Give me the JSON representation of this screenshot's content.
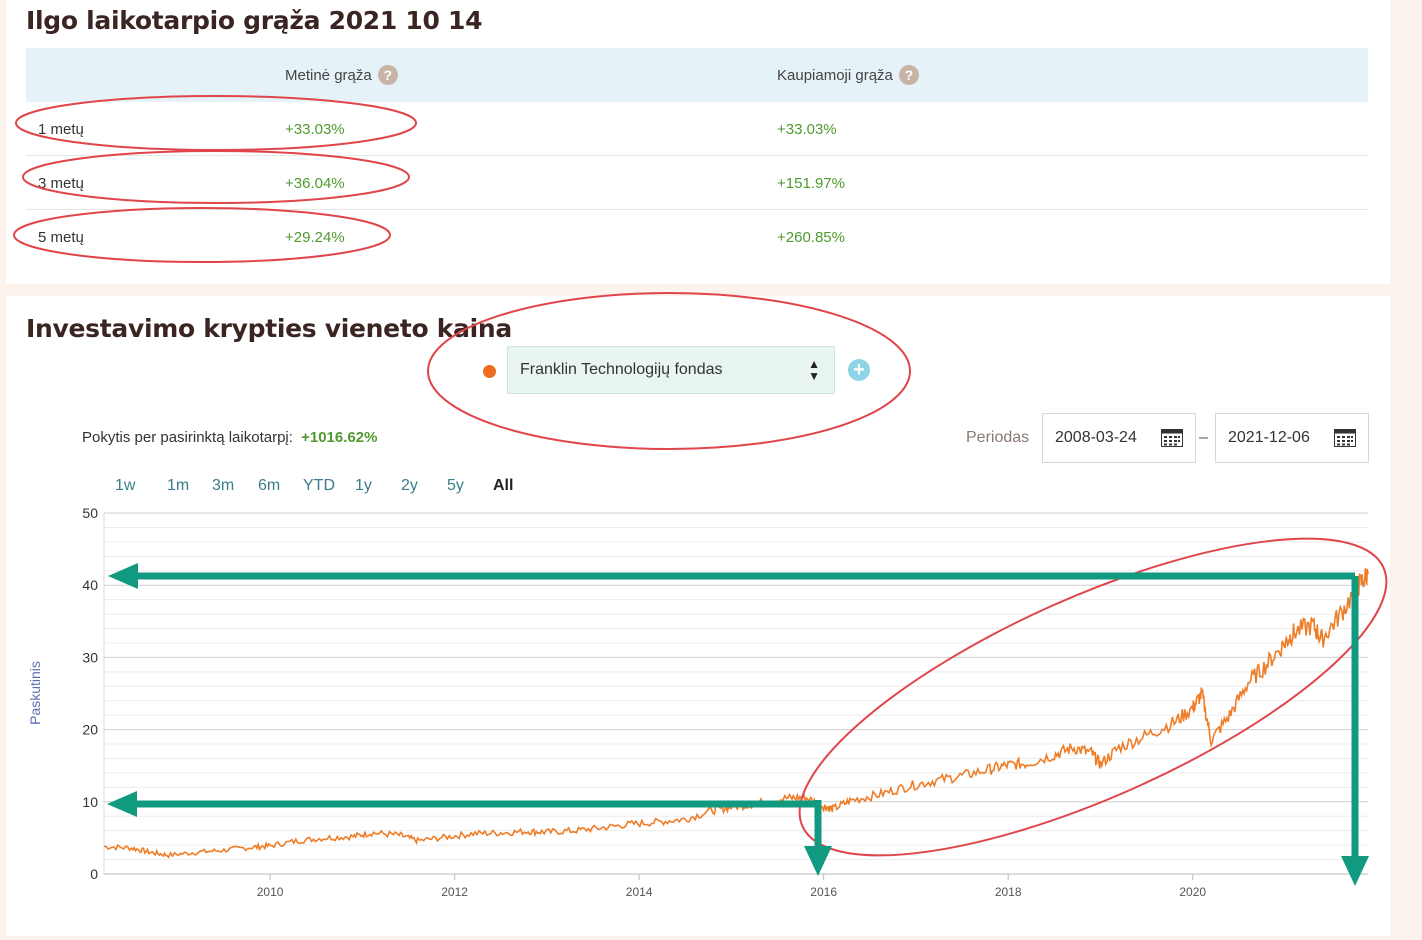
{
  "returns": {
    "title": "Ilgo laikotarpio grąža 2021 10 14",
    "col_annual": "Metinė grąža",
    "col_cumulative": "Kaupiamoji grąža",
    "help_glyph": "?",
    "rows": [
      {
        "period": "1 metų",
        "annual": "+33.03%",
        "cumulative": "+33.03%"
      },
      {
        "period": "3 metų",
        "annual": "+36.04%",
        "cumulative": "+151.97%"
      },
      {
        "period": "5 metų",
        "annual": "+29.24%",
        "cumulative": "+260.85%"
      }
    ]
  },
  "price": {
    "title": "Investavimo krypties vieneto kaina",
    "fund": "Franklin Technologijų fondas",
    "select_arrows": "▲▼",
    "add_glyph": "+",
    "change_label": "Pokytis per pasirinktą laikotarpį:",
    "change_value": "+1016.62%",
    "period_label": "Periodas",
    "date_from": "2008-03-24",
    "date_to": "2021-12-06",
    "date_sep": "–",
    "ranges": [
      "1w",
      "1m",
      "3m",
      "6m",
      "YTD",
      "1y",
      "2y",
      "5y",
      "All"
    ],
    "active_range": "All"
  },
  "colors": {
    "line": "#ee7d28",
    "dot": "#ee6c1e",
    "gain": "#4e9a2f",
    "annotation_arrow": "#119a80",
    "annotation_ellipse": "#e0454a"
  },
  "chart_data": {
    "type": "line",
    "ylabel": "Paskutinis",
    "ylim": [
      0,
      50
    ],
    "yticks": [
      0,
      10,
      20,
      30,
      40,
      50
    ],
    "xlim": [
      2008.2,
      2021.9
    ],
    "xticks": [
      2010,
      2012,
      2014,
      2016,
      2018,
      2020
    ],
    "grid": true,
    "series": [
      {
        "x": [
          2008.2,
          2008.5,
          2008.7,
          2008.9,
          2009.2,
          2009.5,
          2009.8,
          2010.0,
          2010.3,
          2010.6,
          2010.9,
          2011.1,
          2011.4,
          2011.6,
          2011.9,
          2012.2,
          2012.5,
          2012.8,
          2013.0,
          2013.3,
          2013.6,
          2013.9,
          2014.2,
          2014.5,
          2014.8,
          2015.0,
          2015.3,
          2015.6,
          2015.8,
          2016.0,
          2016.1,
          2016.3,
          2016.6,
          2016.9,
          2017.2,
          2017.5,
          2017.8,
          2018.0,
          2018.2,
          2018.5,
          2018.7,
          2018.9,
          2019.0,
          2019.2,
          2019.5,
          2019.8,
          2020.0,
          2020.1,
          2020.2,
          2020.4,
          2020.6,
          2020.8,
          2021.0,
          2021.1,
          2021.3,
          2021.4,
          2021.6,
          2021.8,
          2021.9
        ],
        "y": [
          3.8,
          3.6,
          3.0,
          2.6,
          3.0,
          3.3,
          3.7,
          3.9,
          4.6,
          5.0,
          5.2,
          5.7,
          5.4,
          4.6,
          5.1,
          5.6,
          5.7,
          5.9,
          5.8,
          6.0,
          6.4,
          6.9,
          7.2,
          7.6,
          8.8,
          9.3,
          9.8,
          10.5,
          10.6,
          9.4,
          9.0,
          10.2,
          11.0,
          12.1,
          12.9,
          13.6,
          14.5,
          15.1,
          15.3,
          16.5,
          17.5,
          16.8,
          15.2,
          17.5,
          19.2,
          21.0,
          23.0,
          25.0,
          18.5,
          22.0,
          26.5,
          29.0,
          32.0,
          33.5,
          34.5,
          32.5,
          36.0,
          40.0,
          41.5
        ]
      }
    ]
  }
}
